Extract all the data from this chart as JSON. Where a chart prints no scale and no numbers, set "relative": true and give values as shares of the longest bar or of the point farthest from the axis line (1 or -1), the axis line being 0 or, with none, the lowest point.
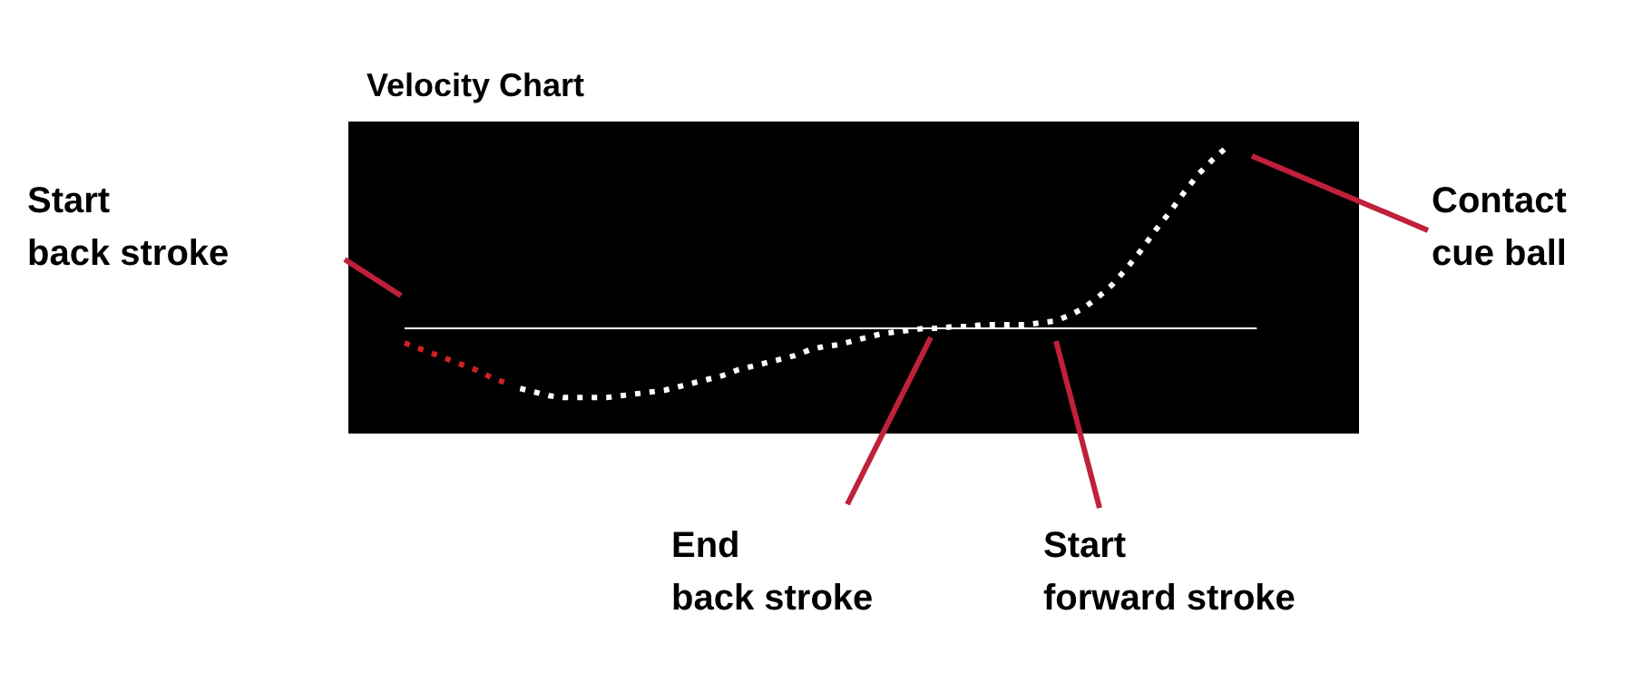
{
  "chart_data": {
    "type": "line",
    "title": "Velocity Chart",
    "relative": true,
    "line_style": "dotted",
    "categories": [
      null,
      null,
      null,
      null,
      null,
      null,
      null,
      null,
      null,
      null,
      null,
      null,
      null,
      null,
      null,
      null,
      null,
      null,
      null,
      null,
      null,
      null,
      null,
      null,
      null,
      null,
      null,
      null,
      null,
      null,
      null,
      null,
      null,
      null,
      null,
      null,
      null,
      null,
      null,
      null,
      null,
      null,
      null,
      null,
      null,
      null,
      null,
      null,
      null,
      null,
      null,
      null,
      null,
      null,
      null,
      null,
      null,
      null,
      null,
      null
    ],
    "series": [
      {
        "color": "#cc2222",
        "values": [
          -0.08,
          -0.11,
          -0.14,
          -0.17,
          -0.2,
          -0.23,
          -0.27,
          -0.3,
          null,
          null,
          null,
          null,
          null,
          null,
          null,
          null,
          null,
          null,
          null,
          null,
          null,
          null,
          null,
          null,
          null,
          null,
          null,
          null,
          null,
          null,
          null,
          null,
          null,
          null,
          null,
          null,
          null,
          null,
          null,
          null,
          null,
          null,
          null,
          null,
          null,
          null,
          null,
          null,
          null,
          null,
          null,
          null,
          null,
          null,
          null,
          null,
          null,
          null,
          null,
          null
        ]
      },
      {
        "color": "#ffffff",
        "values": [
          null,
          null,
          null,
          null,
          null,
          null,
          null,
          null,
          -0.33,
          -0.35,
          -0.37,
          -0.38,
          -0.38,
          -0.38,
          -0.38,
          -0.37,
          -0.36,
          -0.35,
          -0.34,
          -0.32,
          -0.3,
          -0.28,
          -0.26,
          -0.23,
          -0.21,
          -0.19,
          -0.17,
          -0.15,
          -0.12,
          -0.1,
          -0.09,
          -0.07,
          -0.05,
          -0.03,
          -0.02,
          -0.01,
          0,
          0,
          0.01,
          0.01,
          0.02,
          0.02,
          0.02,
          0.02,
          0.03,
          0.04,
          0.07,
          0.11,
          0.17,
          0.24,
          0.33,
          0.43,
          0.54,
          0.64,
          0.75,
          0.85,
          0.93,
          1,
          null,
          null
        ]
      }
    ],
    "annotations": [
      "Start\nback stroke",
      "End\nback stroke",
      "Start\nforward stroke",
      "Contact\ncue ball"
    ]
  }
}
